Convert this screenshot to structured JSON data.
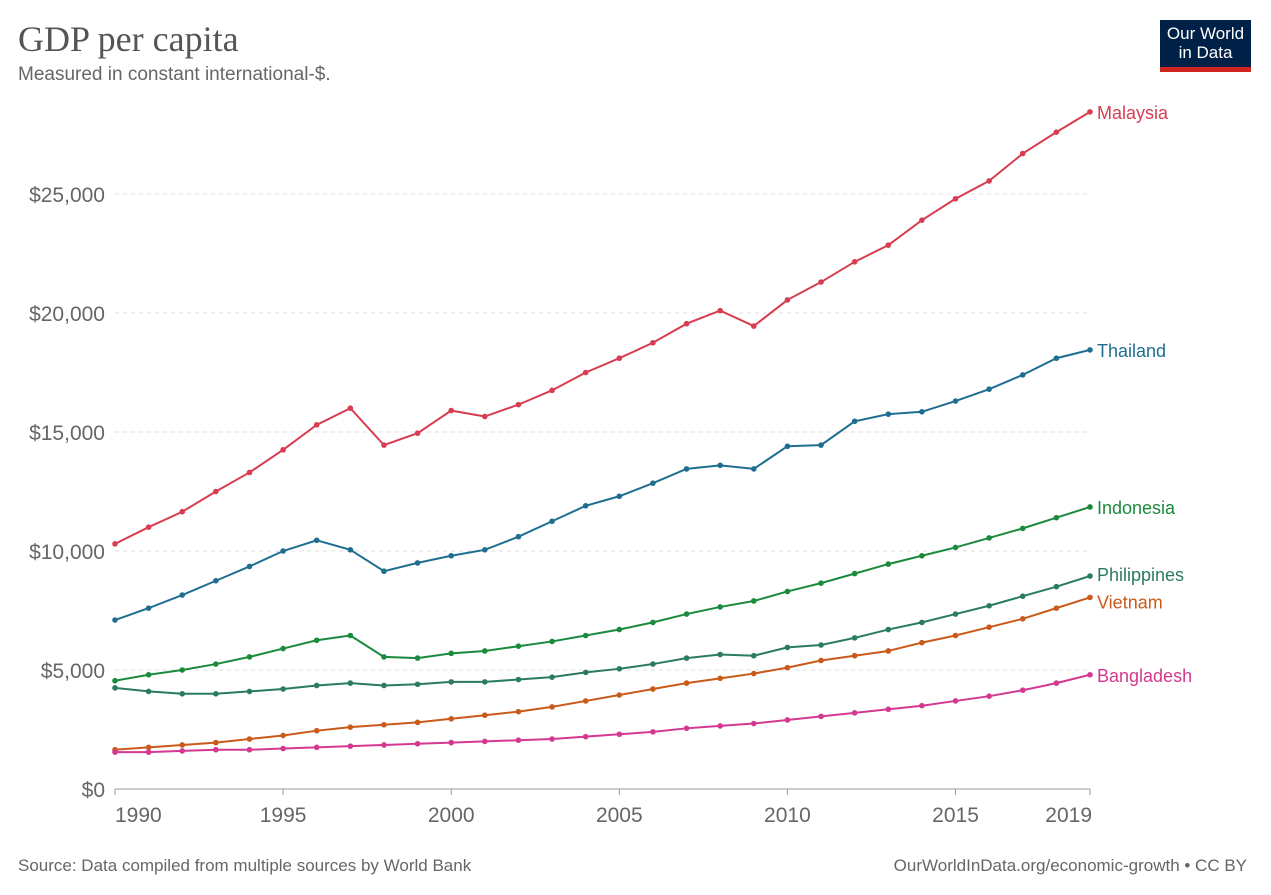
{
  "header": {
    "title": "GDP per capita",
    "subtitle": "Measured in constant international-$."
  },
  "logo": {
    "line1": "Our World",
    "line2": "in Data"
  },
  "footer": {
    "source": "Source: Data compiled from multiple sources by World Bank",
    "link": "OurWorldInData.org/economic-growth • CC BY"
  },
  "chart_data": {
    "type": "line",
    "title": "GDP per capita",
    "subtitle": "Measured in constant international-$.",
    "xlim": [
      1990,
      2019
    ],
    "ylim": [
      0,
      29000
    ],
    "yticks": [
      0,
      5000,
      10000,
      15000,
      20000,
      25000
    ],
    "ytick_labels": [
      "$0",
      "$5,000",
      "$10,000",
      "$15,000",
      "$20,000",
      "$25,000"
    ],
    "xticks": [
      1990,
      1995,
      2000,
      2005,
      2010,
      2015,
      2019
    ],
    "xtick_labels": [
      "1990",
      "1995",
      "2000",
      "2005",
      "2010",
      "2015",
      "2019"
    ],
    "grid": "horizontal dashed",
    "legend": "line-end labels",
    "x": [
      1990,
      1991,
      1992,
      1993,
      1994,
      1995,
      1996,
      1997,
      1998,
      1999,
      2000,
      2001,
      2002,
      2003,
      2004,
      2005,
      2006,
      2007,
      2008,
      2009,
      2010,
      2011,
      2012,
      2013,
      2014,
      2015,
      2016,
      2017,
      2018,
      2019
    ],
    "series": [
      {
        "name": "Malaysia",
        "color": "#d73c50",
        "values": [
          10300,
          11000,
          11650,
          12500,
          13300,
          14250,
          15300,
          16000,
          14450,
          14950,
          15900,
          15650,
          16150,
          16750,
          17500,
          18100,
          18750,
          19550,
          20100,
          19450,
          20550,
          21300,
          22150,
          22850,
          23900,
          24800,
          25550,
          26700,
          27600,
          28450
        ]
      },
      {
        "name": "Thailand",
        "color": "#1f6e91",
        "values": [
          7100,
          7600,
          8150,
          8750,
          9350,
          10000,
          10450,
          10050,
          9150,
          9500,
          9800,
          10050,
          10600,
          11250,
          11900,
          12300,
          12850,
          13450,
          13600,
          13450,
          14400,
          14450,
          15450,
          15750,
          15850,
          16300,
          16800,
          17400,
          18100,
          18450
        ]
      },
      {
        "name": "Indonesia",
        "color": "#1a8a3d",
        "values": [
          4550,
          4800,
          5000,
          5250,
          5550,
          5900,
          6250,
          6450,
          5550,
          5500,
          5700,
          5800,
          6000,
          6200,
          6450,
          6700,
          7000,
          7350,
          7650,
          7900,
          8300,
          8650,
          9050,
          9450,
          9800,
          10150,
          10550,
          10950,
          11400,
          11850
        ]
      },
      {
        "name": "Philippines",
        "color": "#2a7b62",
        "values": [
          4250,
          4100,
          4000,
          4000,
          4100,
          4200,
          4350,
          4450,
          4350,
          4400,
          4500,
          4500,
          4600,
          4700,
          4900,
          5050,
          5250,
          5500,
          5650,
          5600,
          5950,
          6050,
          6350,
          6700,
          7000,
          7350,
          7700,
          8100,
          8500,
          8950
        ]
      },
      {
        "name": "Vietnam",
        "color": "#c95a1a",
        "values": [
          1650,
          1750,
          1850,
          1950,
          2100,
          2250,
          2450,
          2600,
          2700,
          2800,
          2950,
          3100,
          3250,
          3450,
          3700,
          3950,
          4200,
          4450,
          4650,
          4850,
          5100,
          5400,
          5600,
          5800,
          6150,
          6450,
          6800,
          7150,
          7600,
          8050
        ]
      },
      {
        "name": "Bangladesh",
        "color": "#d43890",
        "values": [
          1550,
          1550,
          1600,
          1650,
          1650,
          1700,
          1750,
          1800,
          1850,
          1900,
          1950,
          2000,
          2050,
          2100,
          2200,
          2300,
          2400,
          2550,
          2650,
          2750,
          2900,
          3050,
          3200,
          3350,
          3500,
          3700,
          3900,
          4150,
          4450,
          4800
        ]
      }
    ]
  }
}
